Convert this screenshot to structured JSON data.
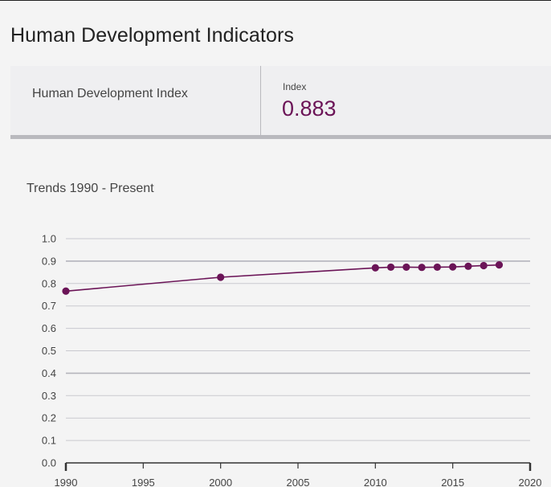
{
  "page": {
    "title": "Human Development Indicators"
  },
  "indicator": {
    "name": "Human Development Index",
    "value_label": "Index",
    "value": "0.883"
  },
  "colors": {
    "accent": "#6b1457",
    "grid": "#c9c9cf",
    "axis": "#555"
  },
  "chart_data": {
    "type": "line",
    "title": "Trends 1990 - Present",
    "xlabel": "",
    "ylabel": "",
    "x": [
      1990,
      2000,
      2010,
      2011,
      2012,
      2013,
      2014,
      2015,
      2016,
      2017,
      2018
    ],
    "series": [
      {
        "values": [
          0.766,
          0.828,
          0.87,
          0.873,
          0.873,
          0.872,
          0.873,
          0.874,
          0.877,
          0.88,
          0.883
        ]
      }
    ],
    "xlim": [
      1990,
      2020
    ],
    "ylim": [
      0,
      1
    ],
    "xticks": [
      1990,
      1995,
      2000,
      2005,
      2010,
      2015,
      2020
    ],
    "xtick_labels": [
      "1990",
      "1995",
      "2000",
      "2005",
      "2010",
      "2015",
      "2020"
    ],
    "yticks": [
      0,
      0.1,
      0.2,
      0.3,
      0.4,
      0.5,
      0.6,
      0.7,
      0.8,
      0.9,
      1.0
    ],
    "ytick_labels": [
      "0.0",
      "0.1",
      "0.2",
      "0.3",
      "0.4",
      "0.5",
      "0.6",
      "0.7",
      "0.8",
      "0.9",
      "1.0"
    ],
    "grid": true
  }
}
